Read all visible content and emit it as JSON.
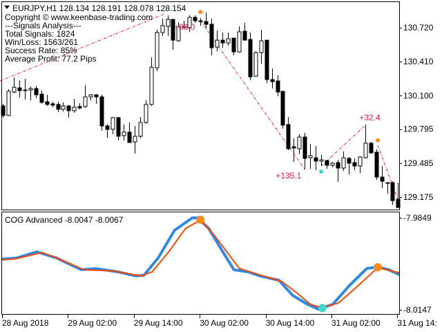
{
  "header": {
    "symbol_line": "EURJPY,H1  128.134 128.191 128.078 128.154",
    "menu_icon": "triangle-down-icon"
  },
  "info_panel": {
    "lines": [
      "Copyright © www.keenbase-trading.com",
      "---Signals Analysis---",
      "Total Signals: 1824",
      "Win/Loss: 1563/261",
      "Success Rate: 85%",
      "Average Profit: 77.2 Pips"
    ]
  },
  "indicator": {
    "title": "COG Advanced -8.0047 -8.0067"
  },
  "colors": {
    "bull_body": "#ffffff",
    "bear_body": "#000000",
    "zigzag": "#e8174a",
    "profit_label": "#e8174a",
    "sell_dot": "#ff8c1a",
    "buy_dot": "#3dd6d0",
    "cog_main": "#2e8ae6",
    "cog_signal": "#ff4500"
  },
  "chart_data": [
    {
      "type": "candlestick",
      "title": "EURJPY,H1",
      "ylim": [
        129.08,
        130.87
      ],
      "yticks": [
        "130.720",
        "130.410",
        "130.100",
        "129.795",
        "129.485",
        "129.175"
      ],
      "xticks": [
        "28 Aug 2018",
        "29 Aug 02:00",
        "29 Aug 14:00",
        "30 Aug 02:00",
        "30 Aug 14:00",
        "31 Aug 02:00",
        "31 Aug 14:"
      ],
      "xtick_bar_index": [
        0,
        12,
        24,
        36,
        48,
        60,
        72
      ],
      "ohlc": [
        [
          130.007,
          130.026,
          129.9,
          129.919
        ],
        [
          129.919,
          130.159,
          129.913,
          130.14
        ],
        [
          130.133,
          130.266,
          130.121,
          130.177
        ],
        [
          130.171,
          130.24,
          130.083,
          130.146
        ],
        [
          130.152,
          130.253,
          130.064,
          130.152
        ],
        [
          130.152,
          130.184,
          130.058,
          130.165
        ],
        [
          130.165,
          130.19,
          130.077,
          130.108
        ],
        [
          130.114,
          130.146,
          130.026,
          130.039
        ],
        [
          130.045,
          130.108,
          130.007,
          130.02
        ],
        [
          130.026,
          130.045,
          129.995,
          130.014
        ],
        [
          130.02,
          130.045,
          129.95,
          129.976
        ],
        [
          129.976,
          130.039,
          129.957,
          130.007
        ],
        [
          130.007,
          130.014,
          129.9,
          129.963
        ],
        [
          129.963,
          130.07,
          129.944,
          129.995
        ],
        [
          130.001,
          130.032,
          129.976,
          129.988
        ],
        [
          130.001,
          130.196,
          129.988,
          130.089
        ],
        [
          130.089,
          130.114,
          130.058,
          130.108
        ],
        [
          130.108,
          130.114,
          130.026,
          130.089
        ],
        [
          130.089,
          130.108,
          129.78,
          129.824
        ],
        [
          129.824,
          129.843,
          129.717,
          129.793
        ],
        [
          129.793,
          129.906,
          129.749,
          129.9
        ],
        [
          129.9,
          129.906,
          129.692,
          129.73
        ],
        [
          129.736,
          129.837,
          129.692,
          129.768
        ],
        [
          129.768,
          129.856,
          129.673,
          129.673
        ],
        [
          129.679,
          129.824,
          129.572,
          129.73
        ],
        [
          129.73,
          129.906,
          129.711,
          129.856
        ],
        [
          129.856,
          130.058,
          129.843,
          130.02
        ],
        [
          130.02,
          130.449,
          130.007,
          130.36
        ],
        [
          130.354,
          130.701,
          130.323,
          130.676
        ],
        [
          130.676,
          130.802,
          130.644,
          130.739
        ],
        [
          130.732,
          130.833,
          130.644,
          130.795
        ],
        [
          130.795,
          130.802,
          130.518,
          130.606
        ],
        [
          130.6,
          130.77,
          130.594,
          130.726
        ],
        [
          130.72,
          130.783,
          130.713,
          130.732
        ],
        [
          130.72,
          130.833,
          130.682,
          130.814
        ],
        [
          130.814,
          130.833,
          130.764,
          130.783
        ],
        [
          130.783,
          130.808,
          130.739,
          130.776
        ],
        [
          130.776,
          130.859,
          130.713,
          130.751
        ],
        [
          130.751,
          130.802,
          130.468,
          130.537
        ],
        [
          130.543,
          130.695,
          130.505,
          130.606
        ],
        [
          130.606,
          130.676,
          130.537,
          130.581
        ],
        [
          130.581,
          130.676,
          130.556,
          130.619
        ],
        [
          130.625,
          130.625,
          130.468,
          130.499
        ],
        [
          130.499,
          130.732,
          130.493,
          130.682
        ],
        [
          130.688,
          130.764,
          130.606,
          130.606
        ],
        [
          130.613,
          130.676,
          130.24,
          130.272
        ],
        [
          130.278,
          130.505,
          130.272,
          130.493
        ],
        [
          130.493,
          130.701,
          130.392,
          130.6
        ],
        [
          130.606,
          130.606,
          130.215,
          130.247
        ],
        [
          130.247,
          130.348,
          130.165,
          130.228
        ],
        [
          130.234,
          130.285,
          130.095,
          130.133
        ],
        [
          130.14,
          130.14,
          129.799,
          129.831
        ],
        [
          129.837,
          129.906,
          129.604,
          129.616
        ],
        [
          129.635,
          129.711,
          129.496,
          129.623
        ],
        [
          129.616,
          129.749,
          129.566,
          129.723
        ],
        [
          129.723,
          129.761,
          129.427,
          129.528
        ],
        [
          129.534,
          129.66,
          129.433,
          129.553
        ],
        [
          129.534,
          129.641,
          129.421,
          129.503
        ],
        [
          129.503,
          129.56,
          129.459,
          129.515
        ],
        [
          129.509,
          129.515,
          129.433,
          129.465
        ],
        [
          129.465,
          129.496,
          129.446,
          129.484
        ],
        [
          129.49,
          129.515,
          129.314,
          129.44
        ],
        [
          129.44,
          129.591,
          129.414,
          129.534
        ],
        [
          129.528,
          129.541,
          129.383,
          129.484
        ],
        [
          129.49,
          129.528,
          129.421,
          129.459
        ],
        [
          129.459,
          129.547,
          129.395,
          129.541
        ],
        [
          129.534,
          129.837,
          129.528,
          129.667
        ],
        [
          129.667,
          129.679,
          129.572,
          129.578
        ],
        [
          129.585,
          129.61,
          129.332,
          129.358
        ],
        [
          129.358,
          129.459,
          129.257,
          129.32
        ],
        [
          129.307,
          129.307,
          129.206,
          129.307
        ],
        [
          129.307,
          129.32,
          129.105,
          129.143
        ],
        [
          129.156,
          129.307,
          129.08,
          129.08
        ]
      ],
      "zigzag": [
        {
          "from": [
            -0.5,
            130.234
          ],
          "to": [
            29.5,
            130.846
          ],
          "label": "+83.0"
        },
        {
          "from": [
            36,
            130.783
          ],
          "to": [
            55,
            129.427
          ],
          "label": "+135.1"
        },
        {
          "from": [
            58,
            129.459
          ],
          "to": [
            66.2,
            129.837
          ],
          "label": "+32.4"
        },
        {
          "from": [
            68.3,
            129.648
          ],
          "to": [
            72.5,
            129.08
          ],
          "label": ""
        }
      ],
      "signals": [
        {
          "type": "sell",
          "bar": 36,
          "price": 130.85
        },
        {
          "type": "buy",
          "bar": 58,
          "price": 129.42
        },
        {
          "type": "sell",
          "bar": 68.3,
          "price": 129.68
        }
      ]
    },
    {
      "type": "line",
      "title": "COG Advanced -8.0047 -8.0067",
      "ylim": [
        -8.0147,
        -7.9849
      ],
      "yticks": [
        "-7.9849",
        "-8.0147"
      ],
      "series": [
        {
          "color": "#2e8ae6",
          "x": [
            -0.5,
            2.5,
            6.2,
            9.8,
            14.3,
            17.0,
            21.0,
            24.2,
            25.7,
            28.3,
            31.3,
            34.5,
            35.5,
            37.5,
            40.0,
            42.1,
            44.7,
            46.8,
            50.3,
            52.8,
            55.5,
            57.5,
            60.1,
            63.1,
            66.3,
            68.3,
            70.3,
            72.5
          ],
          "y": [
            -7.9983,
            -7.9979,
            -7.9959,
            -7.9979,
            -8.0017,
            -8.0013,
            -8.0024,
            -8.0037,
            -8.0035,
            -7.9979,
            -7.9889,
            -7.9849,
            -7.9849,
            -7.9883,
            -7.9957,
            -8.0017,
            -8.0024,
            -8.0037,
            -8.0051,
            -8.01,
            -8.0129,
            -8.0145,
            -8.0129,
            -8.0069,
            -8.0013,
            -8.0008,
            -8.0017,
            -8.0035
          ]
        },
        {
          "color": "#ff4500",
          "x": [
            -0.5,
            2.5,
            7.2,
            11.3,
            14.8,
            20.0,
            25.2,
            27.2,
            30.3,
            33.3,
            36.0,
            38.5,
            43.1,
            47.8,
            50.8,
            53.5,
            56.0,
            58.0,
            61.1,
            64.2,
            68.3,
            72.5
          ],
          "y": [
            -7.9986,
            -7.9981,
            -7.9961,
            -7.999,
            -8.0017,
            -8.0021,
            -8.0037,
            -8.0024,
            -7.9957,
            -7.9883,
            -7.9856,
            -7.9905,
            -8.0013,
            -8.0039,
            -8.0055,
            -8.0091,
            -8.0129,
            -8.014,
            -8.0125,
            -8.0077,
            -8.001,
            -8.0028
          ]
        }
      ],
      "signals": [
        {
          "type": "sell",
          "x": 36,
          "y": -7.9855
        },
        {
          "type": "buy",
          "x": 58.2,
          "y": -8.0141
        },
        {
          "type": "sell",
          "x": 68.3,
          "y": -8.0009
        }
      ]
    }
  ]
}
